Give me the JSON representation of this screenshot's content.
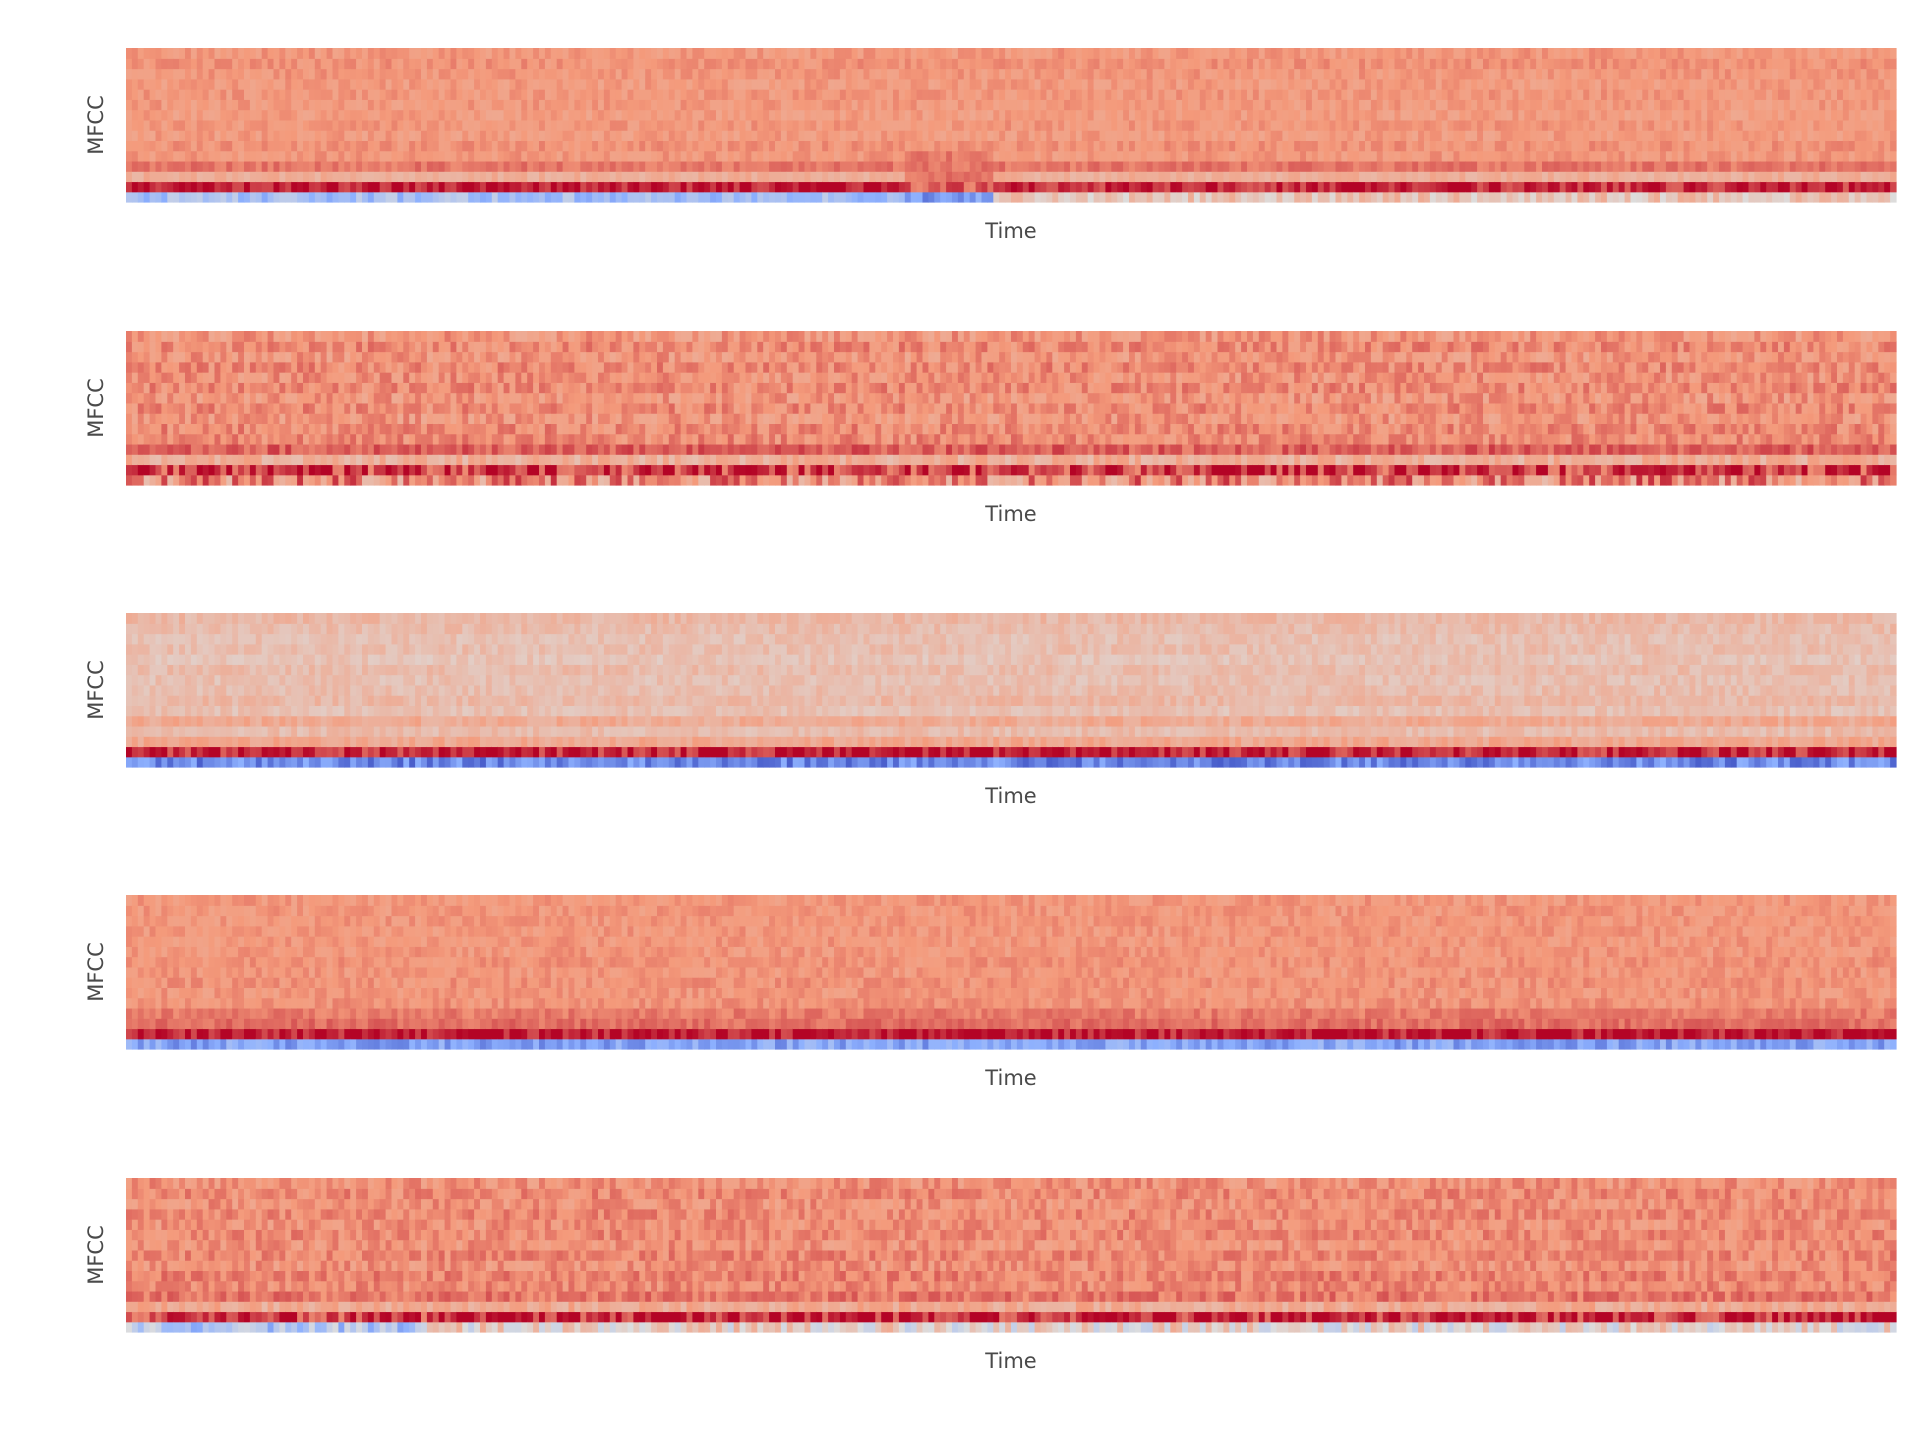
{
  "chart_data": [
    {
      "type": "heatmap",
      "xlabel": "Time",
      "ylabel": "MFCC",
      "colormap": "coolwarm",
      "n_coefficients": 15,
      "n_frames": 300,
      "value_range": [
        -1,
        1
      ],
      "row_levels": [
        -0.55,
        0.95,
        0.35,
        0.62,
        0.5,
        0.52,
        0.48,
        0.5,
        0.47,
        0.49,
        0.5,
        0.48,
        0.5,
        0.52,
        0.5
      ],
      "segments": [
        {
          "x_range": [
            0.0,
            0.44
          ],
          "row0_level": -0.35,
          "row1_level": 0.95
        },
        {
          "x_range": [
            0.44,
            0.49
          ],
          "row0_level": -0.6,
          "row1_level": 0.7,
          "rows_2_4_level": 0.62
        },
        {
          "x_range": [
            0.49,
            1.0
          ],
          "row0_level": 0.2,
          "row1_level": 0.88
        }
      ],
      "noise": 0.08,
      "grid": false
    },
    {
      "type": "heatmap",
      "xlabel": "Time",
      "ylabel": "MFCC",
      "colormap": "coolwarm",
      "n_coefficients": 15,
      "n_frames": 300,
      "value_range": [
        -1,
        1
      ],
      "row_levels": [
        0.55,
        0.85,
        0.35,
        0.7,
        0.55,
        0.55,
        0.5,
        0.55,
        0.5,
        0.55,
        0.52,
        0.55,
        0.5,
        0.55,
        0.5
      ],
      "segments": [],
      "noise": 0.13,
      "grid": false
    },
    {
      "type": "heatmap",
      "xlabel": "Time",
      "ylabel": "MFCC",
      "colormap": "coolwarm",
      "n_coefficients": 15,
      "n_frames": 300,
      "value_range": [
        -1,
        1
      ],
      "row_levels": [
        -0.7,
        0.9,
        0.4,
        0.25,
        0.38,
        0.22,
        0.28,
        0.24,
        0.22,
        0.25,
        0.2,
        0.24,
        0.22,
        0.25,
        0.28
      ],
      "segments": [],
      "noise": 0.09,
      "grid": false
    },
    {
      "type": "heatmap",
      "xlabel": "Time",
      "ylabel": "MFCC",
      "colormap": "coolwarm",
      "n_coefficients": 15,
      "n_frames": 300,
      "value_range": [
        -1,
        1
      ],
      "row_levels": [
        -0.55,
        0.95,
        0.65,
        0.6,
        0.52,
        0.5,
        0.52,
        0.5,
        0.52,
        0.5,
        0.5,
        0.5,
        0.5,
        0.5,
        0.5
      ],
      "segments": [],
      "noise": 0.08,
      "grid": false
    },
    {
      "type": "heatmap",
      "xlabel": "Time",
      "ylabel": "MFCC",
      "colormap": "coolwarm",
      "n_coefficients": 15,
      "n_frames": 300,
      "value_range": [
        -1,
        1
      ],
      "row_levels": [
        0.1,
        0.9,
        0.38,
        0.62,
        0.55,
        0.58,
        0.52,
        0.56,
        0.52,
        0.55,
        0.52,
        0.55,
        0.52,
        0.55,
        0.52
      ],
      "segments": [
        {
          "x_range": [
            0.0,
            0.17
          ],
          "row0_level": -0.3,
          "row1_level": 0.85
        }
      ],
      "noise": 0.12,
      "grid": false
    }
  ]
}
